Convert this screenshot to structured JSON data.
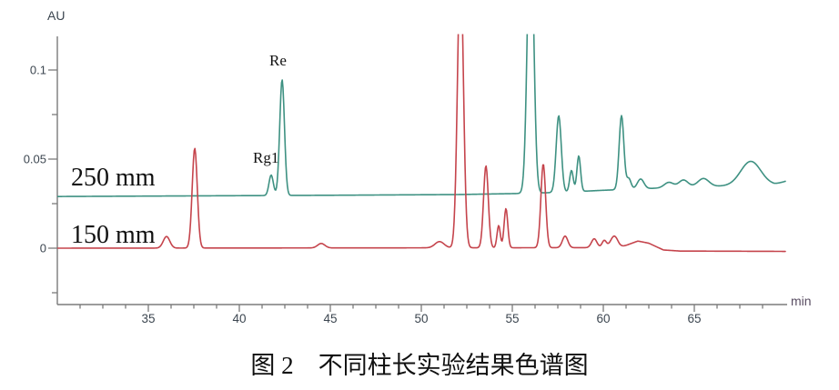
{
  "figure": {
    "caption": "图 2　不同柱长实验结果色谱图"
  },
  "chart_data": {
    "type": "line",
    "title": "图 2　不同柱长实验结果色谱图",
    "xlabel": "min",
    "ylabel": "AU",
    "xlim": [
      30,
      70
    ],
    "ylim": [
      -0.031,
      0.119
    ],
    "grid": false,
    "legend_position": "none",
    "x_major_ticks": [
      35,
      40,
      45,
      50,
      55,
      60,
      65
    ],
    "x_minor_step": 1.25,
    "y_ticks": [
      {
        "v": 0.1,
        "label": "0.1",
        "major": true
      },
      {
        "v": 0.075,
        "label": "",
        "major": false
      },
      {
        "v": 0.05,
        "label": "0.05",
        "major": true
      },
      {
        "v": 0.025,
        "label": "",
        "major": false
      },
      {
        "v": 0,
        "label": "0",
        "major": true
      },
      {
        "v": -0.025,
        "label": "",
        "major": false
      }
    ],
    "annotations": [
      {
        "text": "Re",
        "peak_t": 42.35,
        "series": "250 mm"
      },
      {
        "text": "Rg1",
        "peak_t": 41.75,
        "series": "250 mm"
      }
    ],
    "series": [
      {
        "name": "250 mm",
        "color": "#3e9182",
        "baseline_anchors": [
          [
            30,
            0.029
          ],
          [
            45,
            0.0297
          ],
          [
            52,
            0.0301
          ],
          [
            56,
            0.0308
          ],
          [
            58,
            0.0315
          ],
          [
            60,
            0.0325
          ],
          [
            62,
            0.0333
          ],
          [
            65,
            0.0345
          ],
          [
            68,
            0.0352
          ],
          [
            69.4,
            0.0356
          ],
          [
            70,
            0.0375
          ]
        ],
        "peaks": [
          {
            "t": 41.75,
            "h": 0.0115,
            "sigma": 0.12
          },
          {
            "t": 42.35,
            "h": 0.065,
            "sigma": 0.13
          },
          {
            "t": 56.0,
            "h": 0.16,
            "sigma": 0.17
          },
          {
            "t": 57.55,
            "h": 0.043,
            "sigma": 0.14
          },
          {
            "t": 58.25,
            "h": 0.012,
            "sigma": 0.1
          },
          {
            "t": 58.65,
            "h": 0.02,
            "sigma": 0.1
          },
          {
            "t": 61.0,
            "h": 0.0415,
            "sigma": 0.13
          },
          {
            "t": 61.4,
            "h": 0.006,
            "sigma": 0.12
          },
          {
            "t": 62.05,
            "h": 0.0055,
            "sigma": 0.18
          },
          {
            "t": 63.6,
            "h": 0.003,
            "sigma": 0.25
          },
          {
            "t": 64.4,
            "h": 0.004,
            "sigma": 0.25
          },
          {
            "t": 65.5,
            "h": 0.0045,
            "sigma": 0.3
          },
          {
            "t": 68.1,
            "h": 0.0135,
            "sigma": 0.55
          }
        ]
      },
      {
        "name": "150 mm",
        "color": "#c5444c",
        "baseline_anchors": [
          [
            30,
            0
          ],
          [
            60.9,
            0.0003
          ],
          [
            61.9,
            0.004
          ],
          [
            62.5,
            0.0028
          ],
          [
            63.3,
            -0.001
          ],
          [
            64.2,
            -0.0016
          ],
          [
            70,
            -0.0018
          ]
        ],
        "peaks": [
          {
            "t": 36.0,
            "h": 0.0065,
            "sigma": 0.18
          },
          {
            "t": 37.55,
            "h": 0.056,
            "sigma": 0.14
          },
          {
            "t": 44.5,
            "h": 0.0025,
            "sigma": 0.2
          },
          {
            "t": 51.0,
            "h": 0.0035,
            "sigma": 0.25
          },
          {
            "t": 52.15,
            "h": 0.16,
            "sigma": 0.16
          },
          {
            "t": 53.55,
            "h": 0.046,
            "sigma": 0.13
          },
          {
            "t": 54.25,
            "h": 0.0125,
            "sigma": 0.09
          },
          {
            "t": 54.65,
            "h": 0.022,
            "sigma": 0.1
          },
          {
            "t": 56.7,
            "h": 0.047,
            "sigma": 0.13
          },
          {
            "t": 57.9,
            "h": 0.0065,
            "sigma": 0.15
          },
          {
            "t": 59.5,
            "h": 0.005,
            "sigma": 0.15
          },
          {
            "t": 60.05,
            "h": 0.004,
            "sigma": 0.12
          },
          {
            "t": 60.6,
            "h": 0.0065,
            "sigma": 0.2
          }
        ]
      }
    ]
  }
}
